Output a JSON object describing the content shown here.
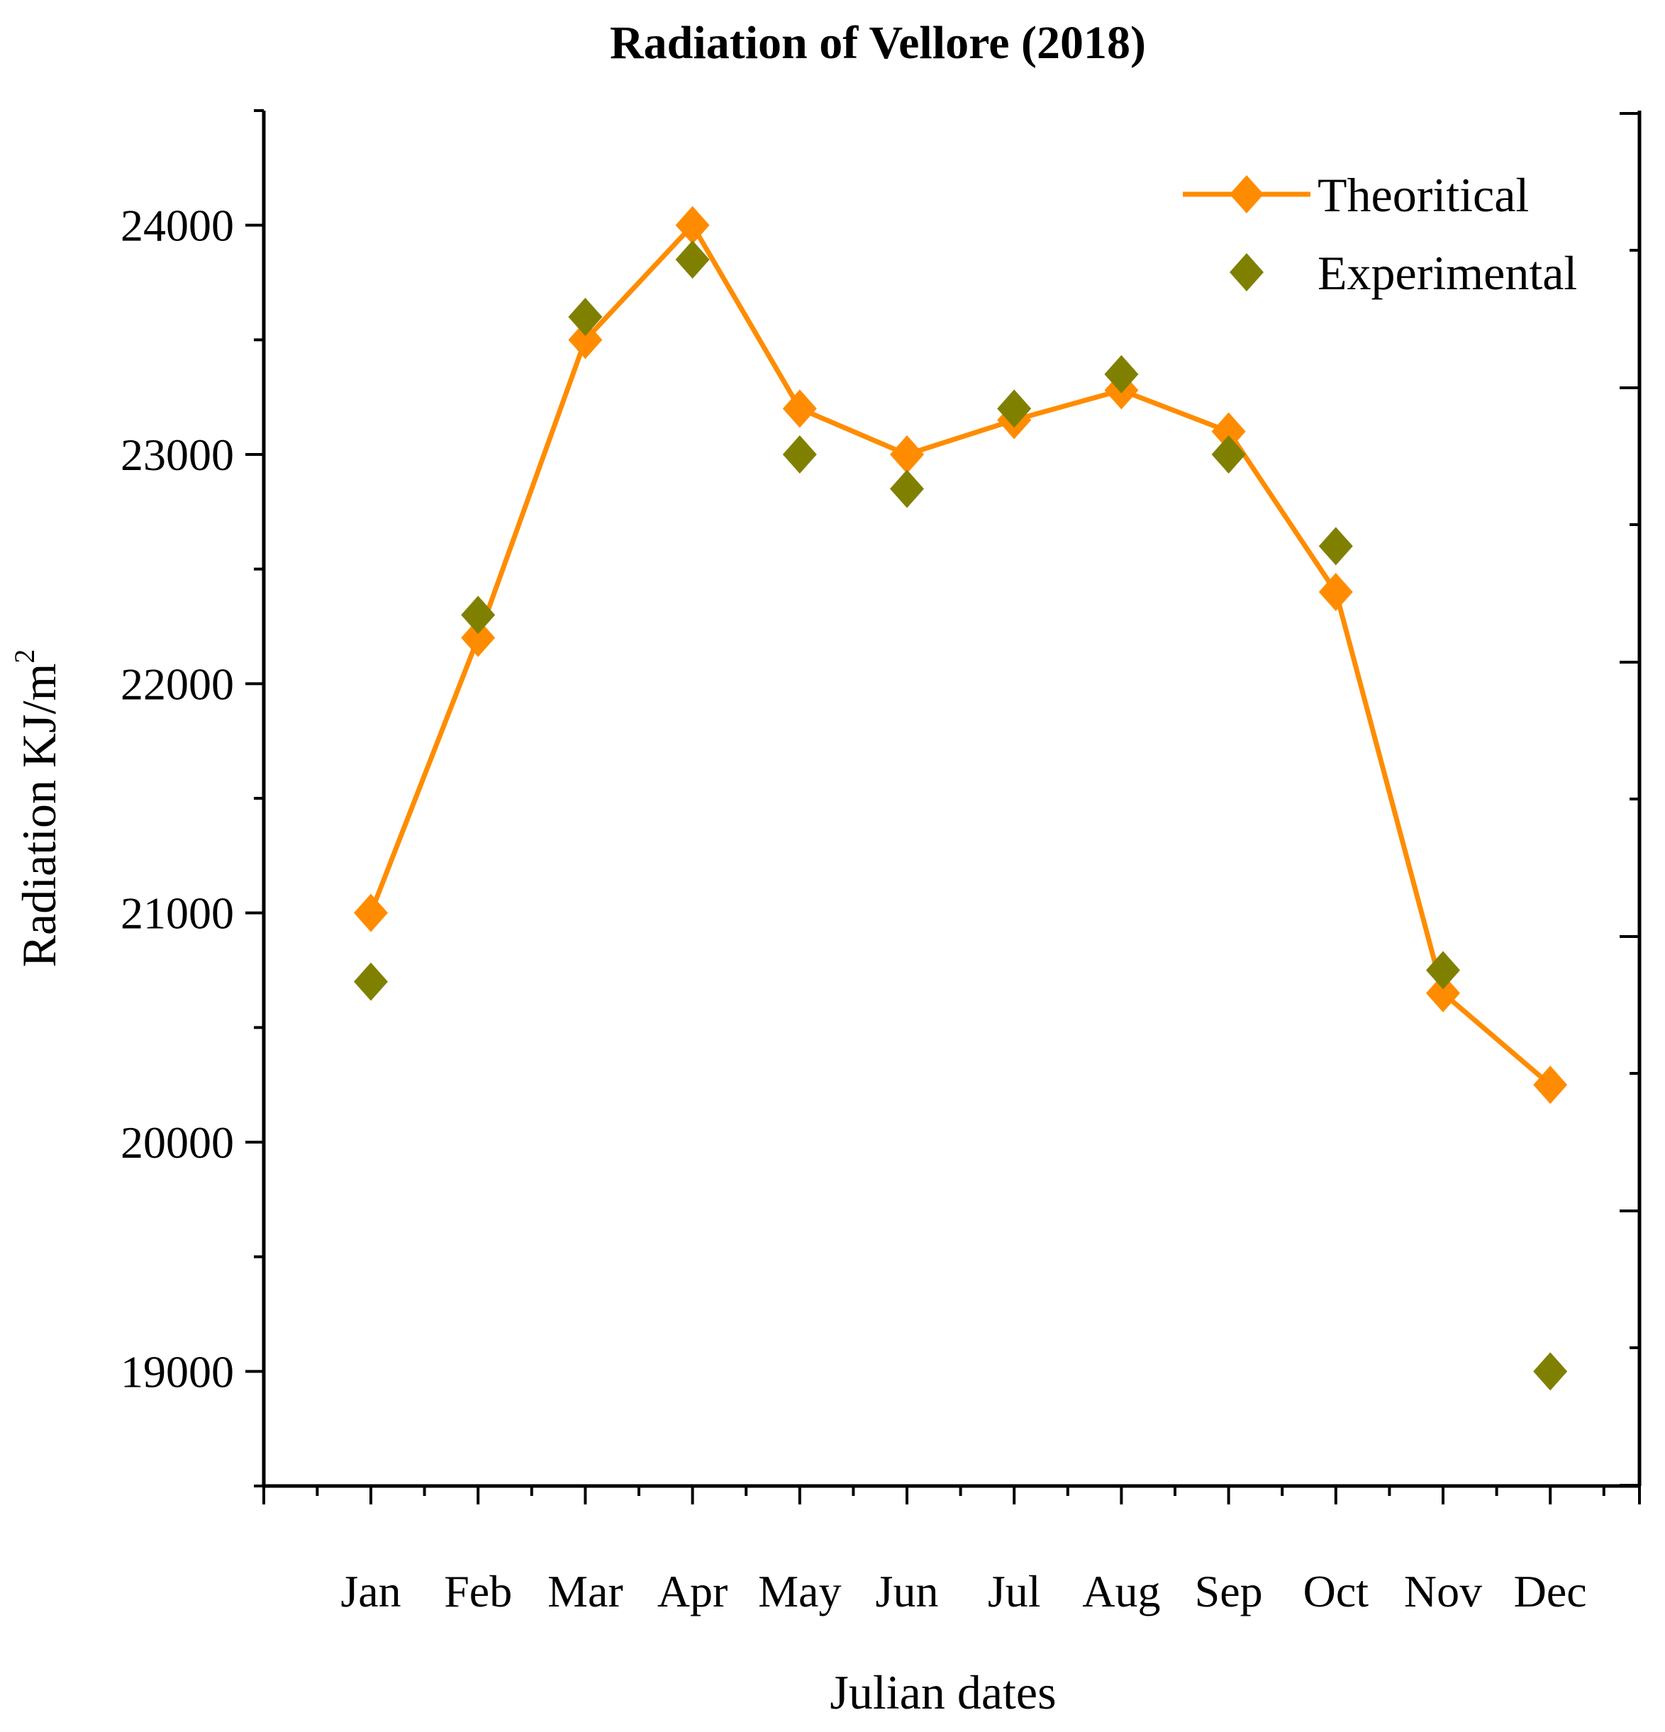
{
  "chart_data": {
    "type": "line",
    "title": "Radiation of Vellore (2018)",
    "xlabel": "Julian dates",
    "ylabel": "Radiation KJ/m",
    "ylabel_superscript": "2",
    "categories": [
      "Jan",
      "Feb",
      "Mar",
      "Apr",
      "May",
      "Jun",
      "Jul",
      "Aug",
      "Sep",
      "Oct",
      "Nov",
      "Dec"
    ],
    "ylim": [
      18500,
      24500
    ],
    "yticks": [
      "19000",
      "20000",
      "21000",
      "22000",
      "23000",
      "24000"
    ],
    "series": [
      {
        "name": "Theoritical",
        "style": "line-marker",
        "color": "#ff8c00",
        "values": [
          21000,
          22200,
          23500,
          24000,
          23200,
          23000,
          23150,
          23280,
          23100,
          22400,
          20650,
          20250
        ]
      },
      {
        "name": "Experimental",
        "style": "marker",
        "color": "#808000",
        "values": [
          20700,
          22300,
          23600,
          23850,
          23000,
          22850,
          23200,
          23350,
          23000,
          22600,
          20750,
          19000
        ]
      }
    ],
    "legend_position": "top-right"
  }
}
